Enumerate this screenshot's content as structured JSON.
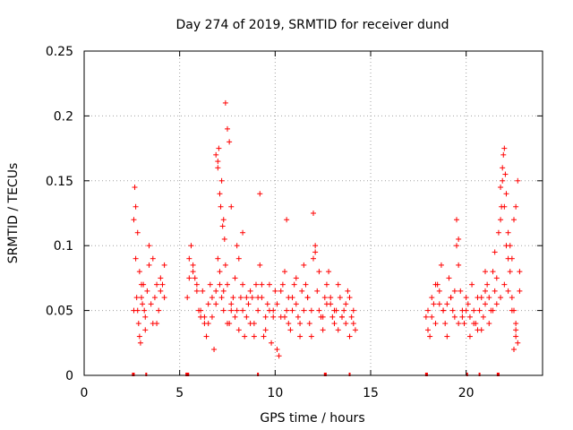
{
  "chart_data": {
    "type": "scatter",
    "title": "Day 274 of 2019, SRMTID for receiver dund",
    "xlabel": "GPS time / hours",
    "ylabel": "SRMTID / TECUs",
    "xlim": [
      0,
      24
    ],
    "ylim": [
      0,
      0.25
    ],
    "x_ticks": [
      0,
      5,
      10,
      15,
      20
    ],
    "x_tick_labels": [
      "0",
      "5",
      "10",
      "15",
      "20"
    ],
    "y_ticks": [
      0,
      0.05,
      0.1,
      0.15,
      0.2,
      0.25
    ],
    "y_tick_labels": [
      "0",
      "0.05",
      "0.1",
      "0.15",
      "0.2",
      "0.25"
    ],
    "grid": true,
    "marker": "+",
    "series_color": "#ff0000",
    "series": [
      {
        "name": "SRMTID",
        "x": [
          2.6,
          2.65,
          2.7,
          2.75,
          2.8,
          2.85,
          2.9,
          2.95,
          3.0,
          3.05,
          3.1,
          3.15,
          3.2,
          3.3,
          3.4,
          3.5,
          3.6,
          3.7,
          3.8,
          3.9,
          4.0,
          4.1,
          4.2,
          2.6,
          2.7,
          2.8,
          2.9,
          3.0,
          3.2,
          3.4,
          3.6,
          3.8,
          4.0,
          4.2,
          5.4,
          5.5,
          5.6,
          5.7,
          5.8,
          5.9,
          6.0,
          6.1,
          6.2,
          6.3,
          6.4,
          6.5,
          6.6,
          6.7,
          6.8,
          6.9,
          7.0,
          7.1,
          7.2,
          7.3,
          7.4,
          7.5,
          7.6,
          7.7,
          7.8,
          7.9,
          8.0,
          8.1,
          8.2,
          8.3,
          8.4,
          8.5,
          8.6,
          8.7,
          8.8,
          8.9,
          9.0,
          9.1,
          9.2,
          9.3,
          9.4,
          9.5,
          9.6,
          9.7,
          9.8,
          9.9,
          10.0,
          10.1,
          10.2,
          10.3,
          10.4,
          10.5,
          10.6,
          10.7,
          10.8,
          10.9,
          11.0,
          11.1,
          11.2,
          11.3,
          11.4,
          11.5,
          11.6,
          11.7,
          11.8,
          11.9,
          12.0,
          12.1,
          12.2,
          12.3,
          12.4,
          12.5,
          12.6,
          12.7,
          12.8,
          12.9,
          13.0,
          13.1,
          13.2,
          13.3,
          13.4,
          13.5,
          13.6,
          13.7,
          13.8,
          13.9,
          14.0,
          14.1,
          14.2,
          5.5,
          5.7,
          5.9,
          6.1,
          6.3,
          6.5,
          6.7,
          6.9,
          7.1,
          7.3,
          7.5,
          7.7,
          7.9,
          8.1,
          8.3,
          8.5,
          8.7,
          8.9,
          9.1,
          9.3,
          9.5,
          9.7,
          9.9,
          10.1,
          10.3,
          10.5,
          10.7,
          10.9,
          11.1,
          11.3,
          11.5,
          11.7,
          11.9,
          12.1,
          12.3,
          12.5,
          12.7,
          12.9,
          13.1,
          13.3,
          13.5,
          13.7,
          13.9,
          14.1,
          7.0,
          7.05,
          7.1,
          7.15,
          7.2,
          7.3,
          7.4,
          7.5,
          7.6,
          7.7,
          8.0,
          8.3,
          9.2,
          10.6,
          12.0,
          6.9,
          7.0,
          7.25,
          7.35,
          17.9,
          18.0,
          18.1,
          18.2,
          18.3,
          18.4,
          18.5,
          18.6,
          18.7,
          18.8,
          18.9,
          19.0,
          19.1,
          19.2,
          19.3,
          19.4,
          19.5,
          19.6,
          19.7,
          19.8,
          19.9,
          20.0,
          20.1,
          20.2,
          20.3,
          20.4,
          20.5,
          20.6,
          20.7,
          20.8,
          20.9,
          21.0,
          21.1,
          21.2,
          21.3,
          21.4,
          21.5,
          21.6,
          21.7,
          21.8,
          21.9,
          22.0,
          22.1,
          22.2,
          22.3,
          22.4,
          22.5,
          22.6,
          22.7,
          22.8,
          18.0,
          18.2,
          18.4,
          18.6,
          18.8,
          19.0,
          19.2,
          19.4,
          19.6,
          19.8,
          20.0,
          20.2,
          20.4,
          20.6,
          20.8,
          21.0,
          21.2,
          21.4,
          21.6,
          21.8,
          22.0,
          22.2,
          22.4,
          22.6,
          22.8,
          21.8,
          21.85,
          21.9,
          21.95,
          22.0,
          22.05,
          22.1,
          22.2,
          22.3,
          22.4,
          22.5,
          22.6,
          22.7,
          19.5,
          19.6,
          21.0,
          21.5,
          22.5,
          22.6
        ],
        "y": [
          0.12,
          0.145,
          0.09,
          0.06,
          0.05,
          0.04,
          0.03,
          0.025,
          0.06,
          0.055,
          0.07,
          0.05,
          0.045,
          0.065,
          0.1,
          0.055,
          0.04,
          0.06,
          0.07,
          0.05,
          0.065,
          0.07,
          0.06,
          0.05,
          0.13,
          0.11,
          0.08,
          0.07,
          0.035,
          0.085,
          0.09,
          0.04,
          0.075,
          0.085,
          0.06,
          0.09,
          0.1,
          0.085,
          0.075,
          0.07,
          0.05,
          0.045,
          0.065,
          0.04,
          0.03,
          0.055,
          0.07,
          0.045,
          0.02,
          0.065,
          0.09,
          0.08,
          0.06,
          0.05,
          0.085,
          0.07,
          0.04,
          0.055,
          0.06,
          0.045,
          0.05,
          0.035,
          0.06,
          0.07,
          0.03,
          0.045,
          0.055,
          0.065,
          0.06,
          0.04,
          0.07,
          0.05,
          0.085,
          0.06,
          0.03,
          0.045,
          0.055,
          0.07,
          0.025,
          0.05,
          0.065,
          0.02,
          0.015,
          0.045,
          0.07,
          0.08,
          0.05,
          0.04,
          0.035,
          0.06,
          0.07,
          0.055,
          0.045,
          0.03,
          0.065,
          0.05,
          0.07,
          0.06,
          0.04,
          0.03,
          0.09,
          0.1,
          0.065,
          0.05,
          0.045,
          0.035,
          0.06,
          0.07,
          0.08,
          0.055,
          0.045,
          0.04,
          0.05,
          0.035,
          0.06,
          0.045,
          0.05,
          0.04,
          0.065,
          0.03,
          0.045,
          0.04,
          0.035,
          0.075,
          0.08,
          0.065,
          0.05,
          0.045,
          0.04,
          0.06,
          0.055,
          0.07,
          0.065,
          0.04,
          0.05,
          0.075,
          0.09,
          0.05,
          0.06,
          0.04,
          0.03,
          0.06,
          0.07,
          0.035,
          0.05,
          0.045,
          0.055,
          0.065,
          0.045,
          0.06,
          0.05,
          0.075,
          0.04,
          0.085,
          0.06,
          0.05,
          0.095,
          0.08,
          0.045,
          0.055,
          0.06,
          0.05,
          0.07,
          0.045,
          0.055,
          0.06,
          0.05,
          0.165,
          0.175,
          0.14,
          0.13,
          0.15,
          0.12,
          0.21,
          0.19,
          0.18,
          0.13,
          0.1,
          0.11,
          0.14,
          0.12,
          0.125,
          0.17,
          0.16,
          0.115,
          0.105,
          0.045,
          0.05,
          0.03,
          0.06,
          0.055,
          0.04,
          0.07,
          0.065,
          0.085,
          0.05,
          0.04,
          0.055,
          0.075,
          0.06,
          0.05,
          0.045,
          0.1,
          0.085,
          0.065,
          0.05,
          0.04,
          0.06,
          0.055,
          0.045,
          0.07,
          0.05,
          0.04,
          0.035,
          0.05,
          0.06,
          0.045,
          0.055,
          0.07,
          0.06,
          0.05,
          0.08,
          0.065,
          0.075,
          0.11,
          0.145,
          0.16,
          0.13,
          0.1,
          0.09,
          0.08,
          0.06,
          0.05,
          0.035,
          0.025,
          0.065,
          0.035,
          0.045,
          0.07,
          0.055,
          0.05,
          0.03,
          0.06,
          0.065,
          0.04,
          0.045,
          0.05,
          0.03,
          0.04,
          0.06,
          0.035,
          0.065,
          0.04,
          0.05,
          0.055,
          0.06,
          0.07,
          0.065,
          0.05,
          0.04,
          0.08,
          0.12,
          0.13,
          0.15,
          0.17,
          0.175,
          0.155,
          0.14,
          0.11,
          0.1,
          0.09,
          0.12,
          0.13,
          0.15,
          0.12,
          0.105,
          0.08,
          0.095,
          0.02,
          0.03
        ],
        "color": "#ff0000"
      }
    ],
    "rug_x": [
      2.55,
      2.6,
      3.25,
      5.35,
      5.4,
      5.45,
      9.1,
      12.6,
      12.65,
      13.9,
      17.9,
      17.95,
      20.05,
      20.7,
      21.65,
      21.7
    ]
  }
}
